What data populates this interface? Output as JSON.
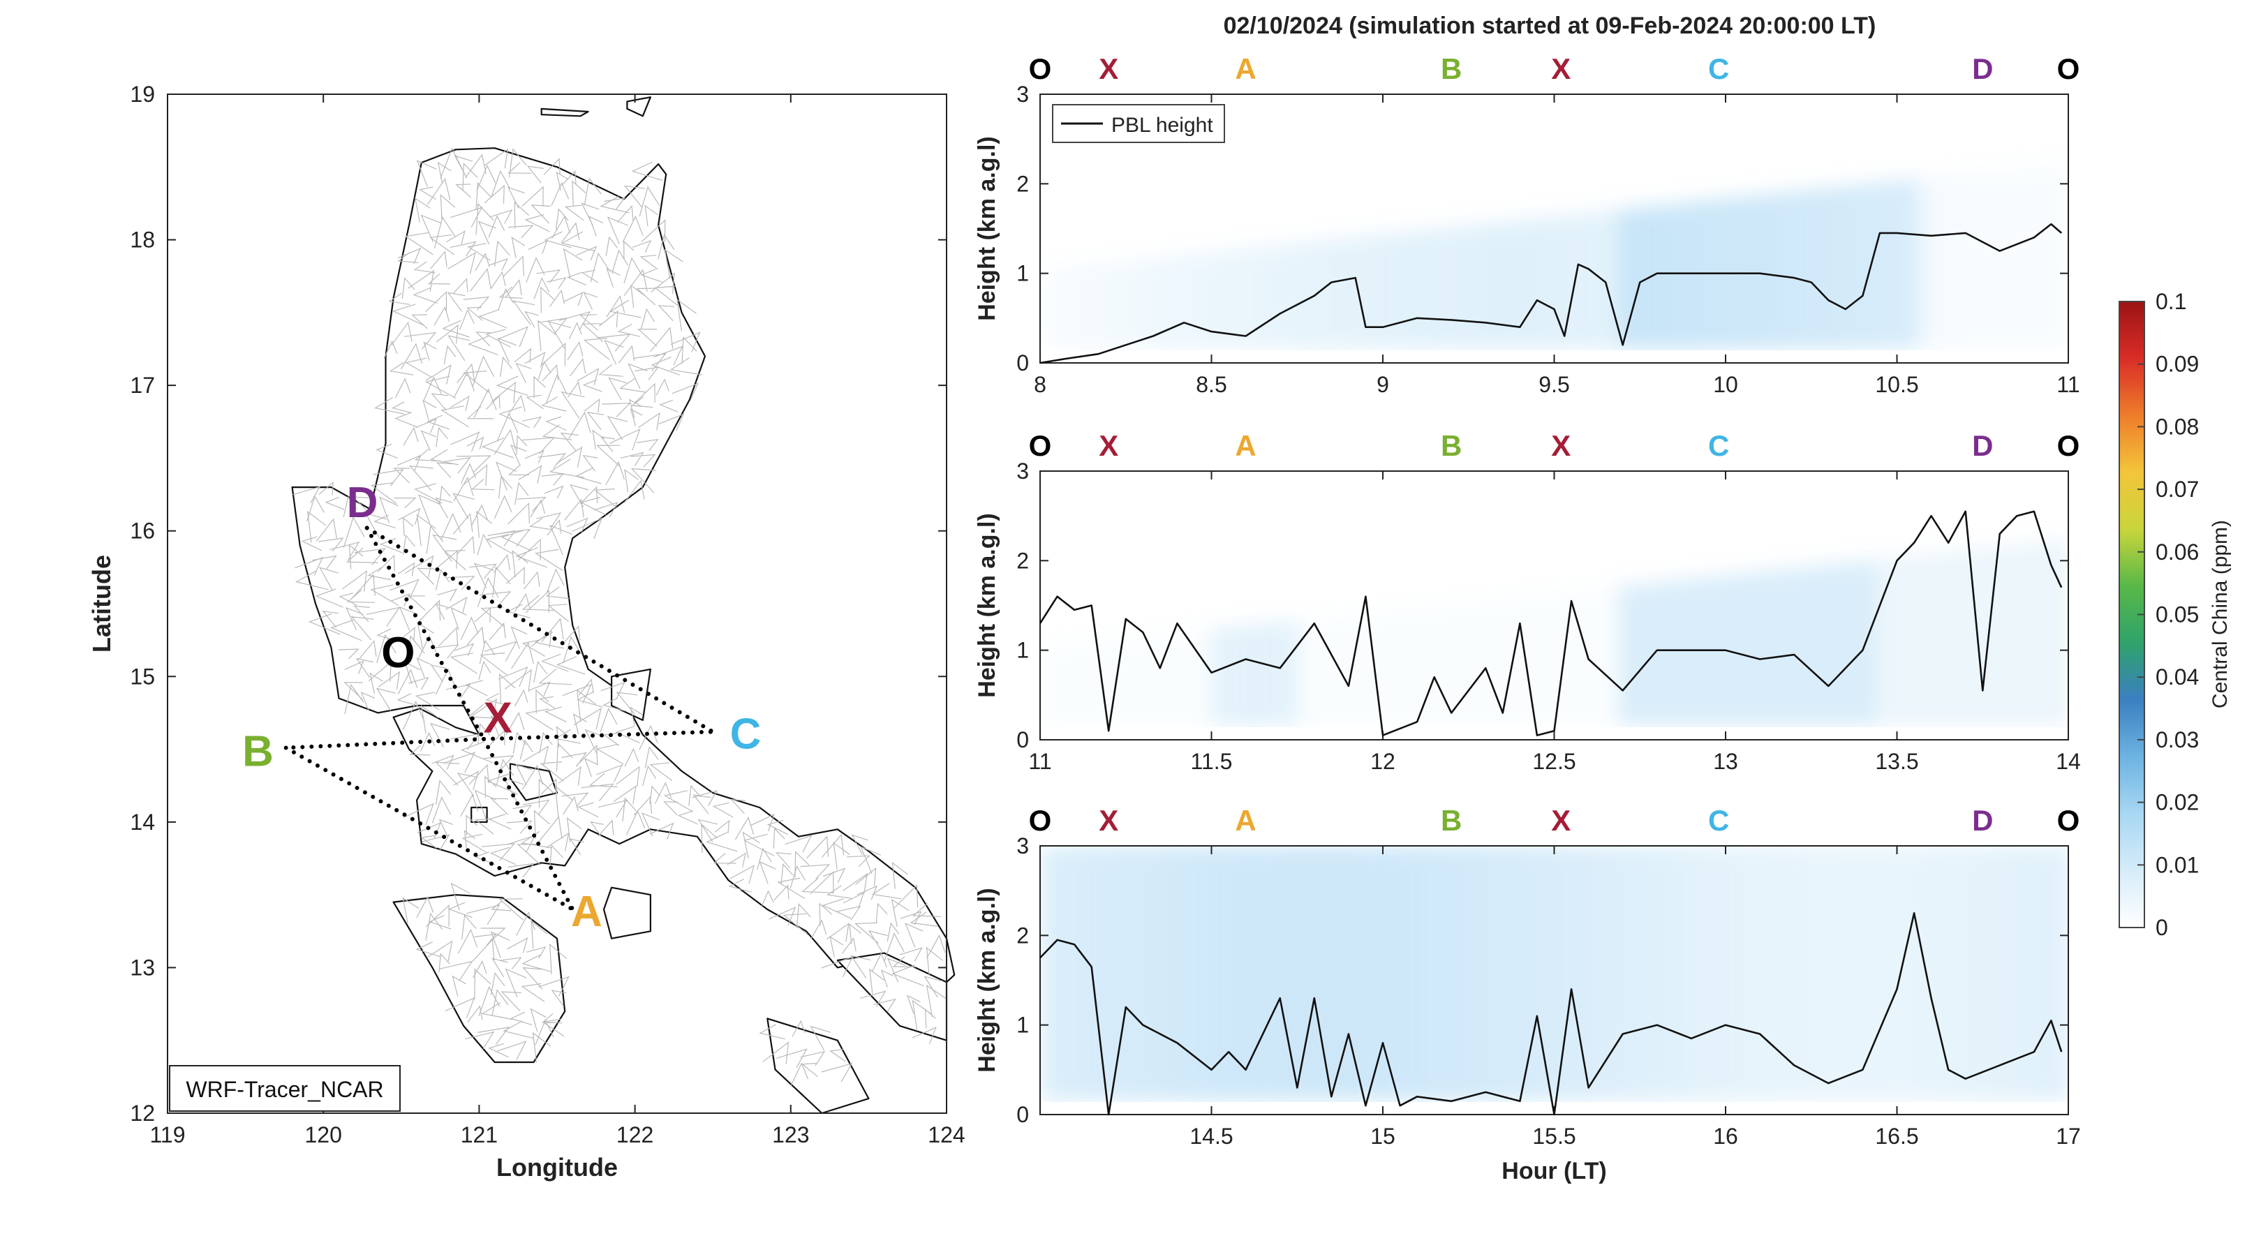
{
  "figure": {
    "title": "02/10/2024 (simulation started at 09-Feb-2024 20:00:00 LT)",
    "source_label": "WRF-Tracer_NCAR",
    "colorbar": {
      "label": "Central China (ppm)",
      "ticks": [
        "0",
        "0.01",
        "0.02",
        "0.03",
        "0.04",
        "0.05",
        "0.06",
        "0.07",
        "0.08",
        "0.09",
        "0.1"
      ],
      "colors": [
        "#ffffff",
        "#d6ecf9",
        "#a7d7f2",
        "#6db3e2",
        "#3b7fc0",
        "#2fa36b",
        "#58b848",
        "#c9d53c",
        "#f3c53a",
        "#ee7d2b",
        "#d92d27",
        "#9b1414"
      ]
    }
  },
  "chart_data": [
    {
      "type": "map",
      "xlabel": "Longitude",
      "ylabel": "Latitude",
      "xlim": [
        119,
        124
      ],
      "ylim": [
        12,
        19
      ],
      "xticks": [
        "119",
        "120",
        "121",
        "122",
        "123",
        "124"
      ],
      "yticks": [
        "12",
        "13",
        "14",
        "15",
        "16",
        "17",
        "18",
        "19"
      ],
      "points": [
        {
          "label": "D",
          "lon": 120.25,
          "lat": 16.2,
          "color": "#7b2d8e"
        },
        {
          "label": "O",
          "lon": 120.48,
          "lat": 15.17,
          "color": "#000000"
        },
        {
          "label": "X",
          "lon": 121.12,
          "lat": 14.72,
          "color": "#a51d36"
        },
        {
          "label": "B",
          "lon": 119.58,
          "lat": 14.49,
          "color": "#79b02f"
        },
        {
          "label": "C",
          "lon": 122.71,
          "lat": 14.61,
          "color": "#3fb5e5"
        },
        {
          "label": "A",
          "lon": 121.69,
          "lat": 13.39,
          "color": "#eca72e"
        }
      ],
      "route_nodes": [
        {
          "lon": 120.28,
          "lat": 16.02
        },
        {
          "lon": 121.03,
          "lat": 14.57
        },
        {
          "lon": 119.76,
          "lat": 14.51
        },
        {
          "lon": 122.5,
          "lat": 14.62
        },
        {
          "lon": 121.6,
          "lat": 13.4
        },
        {
          "lon": 121.55,
          "lat": 13.7
        }
      ]
    },
    {
      "type": "line",
      "panel": "top",
      "series": [
        {
          "name": "PBL height"
        }
      ],
      "legend": "top-left",
      "ylabel": "Height (km a.g.l)",
      "xlabel": "",
      "xlim": [
        8,
        11
      ],
      "ylim": [
        0,
        3
      ],
      "xticks": [
        "8",
        "8.5",
        "9",
        "9.5",
        "10",
        "10.5",
        "11"
      ],
      "yticks": [
        "0",
        "1",
        "2",
        "3"
      ],
      "x": [
        8.0,
        8.08,
        8.17,
        8.25,
        8.33,
        8.42,
        8.5,
        8.6,
        8.7,
        8.8,
        8.85,
        8.92,
        8.95,
        9.0,
        9.1,
        9.2,
        9.3,
        9.4,
        9.45,
        9.5,
        9.53,
        9.57,
        9.6,
        9.65,
        9.7,
        9.75,
        9.8,
        9.9,
        10.0,
        10.1,
        10.2,
        10.25,
        10.3,
        10.35,
        10.4,
        10.45,
        10.5,
        10.6,
        10.7,
        10.8,
        10.9,
        10.95,
        10.98
      ],
      "y": [
        0.0,
        0.05,
        0.1,
        0.2,
        0.3,
        0.45,
        0.35,
        0.3,
        0.55,
        0.75,
        0.9,
        0.95,
        0.4,
        0.4,
        0.5,
        0.48,
        0.45,
        0.4,
        0.7,
        0.6,
        0.3,
        1.1,
        1.05,
        0.9,
        0.2,
        0.9,
        1.0,
        1.0,
        1.0,
        1.0,
        0.95,
        0.9,
        0.7,
        0.6,
        0.75,
        1.45,
        1.45,
        1.42,
        1.45,
        1.25,
        1.4,
        1.55,
        1.45
      ]
    },
    {
      "type": "line",
      "panel": "middle",
      "series": [
        {
          "name": "PBL height"
        }
      ],
      "ylabel": "Height (km a.g.l)",
      "xlabel": "",
      "xlim": [
        11,
        14
      ],
      "ylim": [
        0,
        3
      ],
      "xticks": [
        "11",
        "11.5",
        "12",
        "12.5",
        "13",
        "13.5",
        "14"
      ],
      "yticks": [
        "0",
        "1",
        "2",
        "3"
      ],
      "x": [
        11.0,
        11.05,
        11.1,
        11.15,
        11.2,
        11.25,
        11.3,
        11.35,
        11.4,
        11.5,
        11.6,
        11.7,
        11.8,
        11.9,
        11.95,
        12.0,
        12.1,
        12.15,
        12.2,
        12.3,
        12.35,
        12.4,
        12.45,
        12.5,
        12.55,
        12.6,
        12.7,
        12.8,
        12.9,
        13.0,
        13.1,
        13.2,
        13.3,
        13.4,
        13.5,
        13.55,
        13.6,
        13.65,
        13.7,
        13.75,
        13.8,
        13.85,
        13.9,
        13.95,
        13.98
      ],
      "y": [
        1.3,
        1.6,
        1.45,
        1.5,
        0.1,
        1.35,
        1.2,
        0.8,
        1.3,
        0.75,
        0.9,
        0.8,
        1.3,
        0.6,
        1.6,
        0.05,
        0.2,
        0.7,
        0.3,
        0.8,
        0.3,
        1.3,
        0.05,
        0.1,
        1.55,
        0.9,
        0.55,
        1.0,
        1.0,
        1.0,
        0.9,
        0.95,
        0.6,
        1.0,
        2.0,
        2.2,
        2.5,
        2.2,
        2.55,
        0.55,
        2.3,
        2.5,
        2.55,
        1.95,
        1.7
      ]
    },
    {
      "type": "line",
      "panel": "bottom",
      "series": [
        {
          "name": "PBL height"
        }
      ],
      "ylabel": "Height (km a.g.l)",
      "xlabel": "Hour (LT)",
      "xlim": [
        14,
        17
      ],
      "ylim": [
        0,
        3
      ],
      "xticks": [
        "14.5",
        "15",
        "15.5",
        "16",
        "16.5",
        "17"
      ],
      "yticks": [
        "0",
        "1",
        "2",
        "3"
      ],
      "x": [
        14.0,
        14.05,
        14.1,
        14.15,
        14.2,
        14.25,
        14.3,
        14.4,
        14.5,
        14.55,
        14.6,
        14.7,
        14.75,
        14.8,
        14.85,
        14.9,
        14.95,
        15.0,
        15.05,
        15.1,
        15.2,
        15.3,
        15.4,
        15.45,
        15.5,
        15.55,
        15.6,
        15.7,
        15.8,
        15.9,
        16.0,
        16.1,
        16.2,
        16.3,
        16.4,
        16.5,
        16.55,
        16.6,
        16.65,
        16.7,
        16.8,
        16.9,
        16.95,
        16.98
      ],
      "y": [
        1.75,
        1.95,
        1.9,
        1.65,
        0.0,
        1.2,
        1.0,
        0.8,
        0.5,
        0.7,
        0.5,
        1.3,
        0.3,
        1.3,
        0.2,
        0.9,
        0.1,
        0.8,
        0.1,
        0.2,
        0.15,
        0.25,
        0.15,
        1.1,
        0.0,
        1.4,
        0.3,
        0.9,
        1.0,
        0.85,
        1.0,
        0.9,
        0.55,
        0.35,
        0.5,
        1.4,
        2.25,
        1.3,
        0.5,
        0.4,
        0.55,
        0.7,
        1.05,
        0.7
      ]
    }
  ],
  "route_labels": [
    {
      "label": "O",
      "x": 8.0,
      "color": "#000000"
    },
    {
      "label": "X",
      "x": 8.2,
      "color": "#a51d36"
    },
    {
      "label": "A",
      "x": 8.6,
      "color": "#eca72e"
    },
    {
      "label": "B",
      "x": 9.2,
      "color": "#79b02f"
    },
    {
      "label": "X",
      "x": 9.52,
      "color": "#a51d36"
    },
    {
      "label": "C",
      "x": 9.98,
      "color": "#3fb5e5"
    },
    {
      "label": "D",
      "x": 10.75,
      "color": "#7b2d8e"
    },
    {
      "label": "O",
      "x": 11.0,
      "color": "#000000"
    }
  ]
}
